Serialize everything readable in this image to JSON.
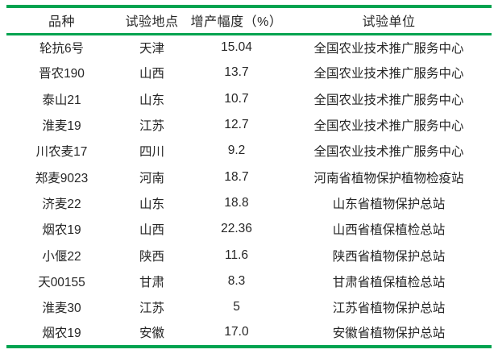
{
  "colors": {
    "rule_green": "#00a350",
    "text": "#262626"
  },
  "table": {
    "headers": [
      "品种",
      "试验地点",
      "增产幅度（%）",
      "试验单位"
    ],
    "rows": [
      {
        "variety": "轮抗6号",
        "location": "天津",
        "increase": "15.04",
        "unit": "全国农业技术推广服务中心"
      },
      {
        "variety": "晋农190",
        "location": "山西",
        "increase": "13.7",
        "unit": "全国农业技术推广服务中心"
      },
      {
        "variety": "泰山21",
        "location": "山东",
        "increase": "10.7",
        "unit": "全国农业技术推广服务中心"
      },
      {
        "variety": "淮麦19",
        "location": "江苏",
        "increase": "12.7",
        "unit": "全国农业技术推广服务中心"
      },
      {
        "variety": "川农麦17",
        "location": "四川",
        "increase": "9.2",
        "unit": "全国农业技术推广服务中心"
      },
      {
        "variety": "郑麦9023",
        "location": "河南",
        "increase": "18.7",
        "unit": "河南省植物保护植物检疫站"
      },
      {
        "variety": "济麦22",
        "location": "山东",
        "increase": "18.8",
        "unit": "山东省植物保护总站"
      },
      {
        "variety": "烟农19",
        "location": "山西",
        "increase": "22.36",
        "unit": "山西省植保植检总站"
      },
      {
        "variety": "小偃22",
        "location": "陕西",
        "increase": "11.6",
        "unit": "陕西省植物保护总站"
      },
      {
        "variety": "天00155",
        "location": "甘肃",
        "increase": "8.3",
        "unit": "甘肃省植保植检总站"
      },
      {
        "variety": "淮麦30",
        "location": "江苏",
        "increase": "5",
        "unit": "江苏省植物保护总站"
      },
      {
        "variety": "烟农19",
        "location": "安徽",
        "increase": "17.0",
        "unit": "安徽省植物保护总站"
      }
    ]
  }
}
